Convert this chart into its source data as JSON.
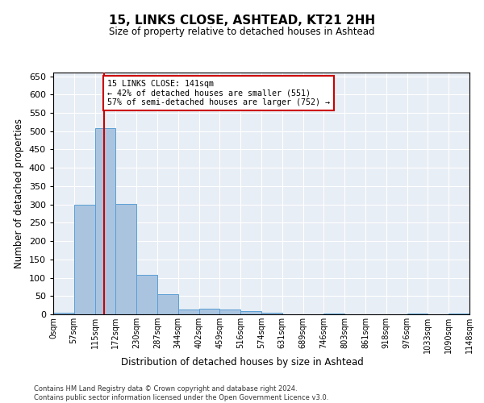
{
  "title": "15, LINKS CLOSE, ASHTEAD, KT21 2HH",
  "subtitle": "Size of property relative to detached houses in Ashtead",
  "xlabel": "Distribution of detached houses by size in Ashtead",
  "ylabel": "Number of detached properties",
  "bin_edges": [
    0,
    57,
    115,
    172,
    230,
    287,
    344,
    402,
    459,
    516,
    574,
    631,
    689,
    746,
    803,
    861,
    918,
    976,
    1033,
    1090,
    1148
  ],
  "bar_heights": [
    5,
    300,
    508,
    302,
    108,
    55,
    13,
    15,
    13,
    9,
    4,
    1,
    0,
    3,
    0,
    1,
    0,
    3,
    0,
    3
  ],
  "bar_color": "#aac4e0",
  "bar_edge_color": "#5a9fd4",
  "property_size": 141,
  "property_line_color": "#cc0000",
  "annotation_text": "15 LINKS CLOSE: 141sqm\n← 42% of detached houses are smaller (551)\n57% of semi-detached houses are larger (752) →",
  "annotation_box_color": "#cc0000",
  "ylim": [
    0,
    660
  ],
  "yticks": [
    0,
    50,
    100,
    150,
    200,
    250,
    300,
    350,
    400,
    450,
    500,
    550,
    600,
    650
  ],
  "background_color": "#e8eef5",
  "footer_line1": "Contains HM Land Registry data © Crown copyright and database right 2024.",
  "footer_line2": "Contains public sector information licensed under the Open Government Licence v3.0.",
  "tick_labels": [
    "0sqm",
    "57sqm",
    "115sqm",
    "172sqm",
    "230sqm",
    "287sqm",
    "344sqm",
    "402sqm",
    "459sqm",
    "516sqm",
    "574sqm",
    "631sqm",
    "689sqm",
    "746sqm",
    "803sqm",
    "861sqm",
    "918sqm",
    "976sqm",
    "1033sqm",
    "1090sqm",
    "1148sqm"
  ]
}
